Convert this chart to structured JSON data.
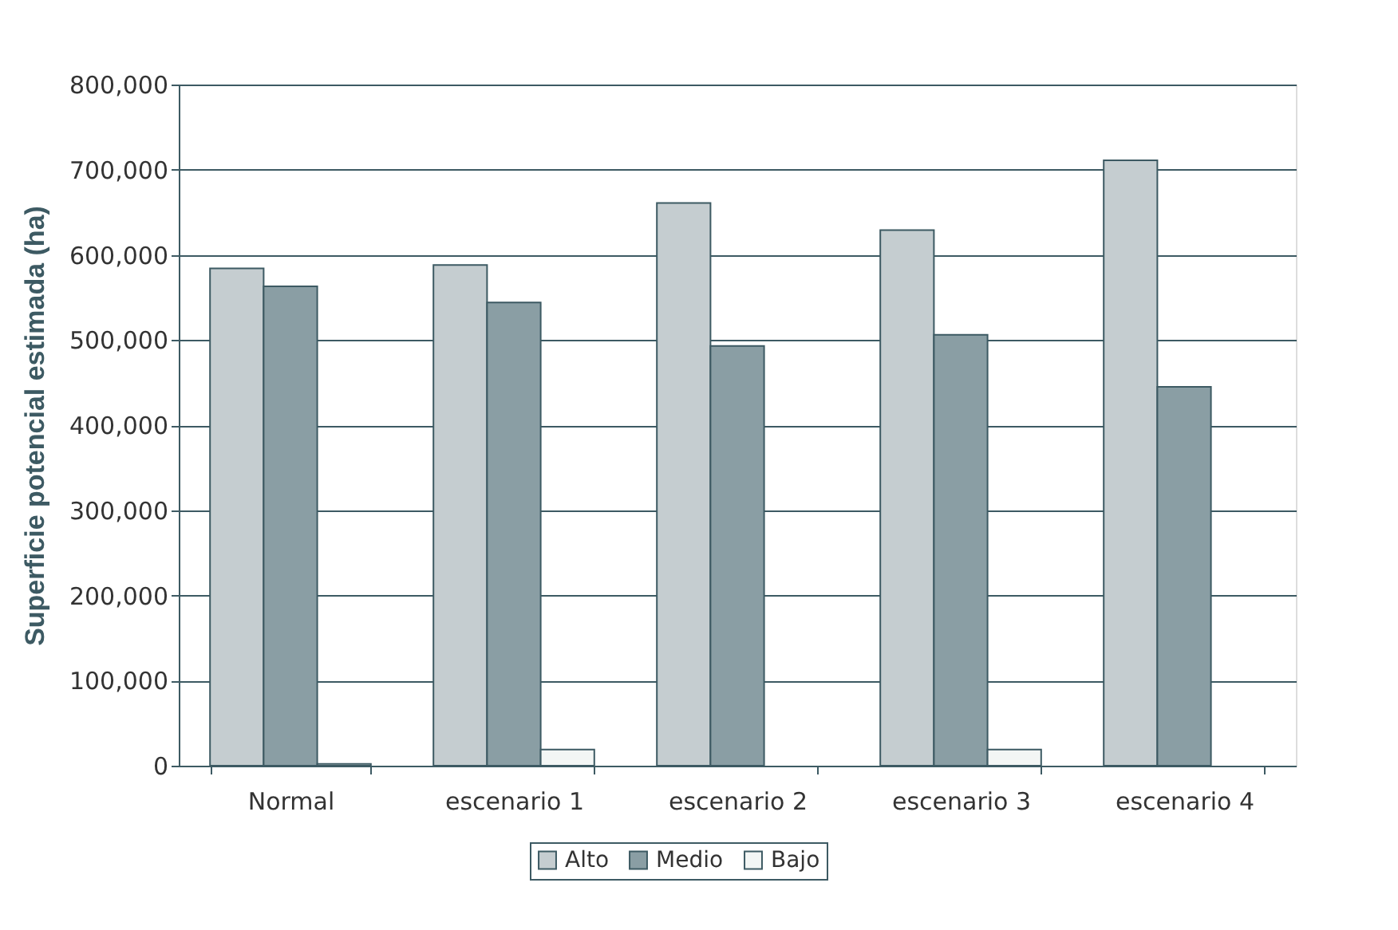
{
  "chart_data": {
    "type": "bar",
    "ylabel": "Superficie potencial estimada (ha)",
    "categories": [
      "Normal",
      "escenario 1",
      "escenario 2",
      "escenario 3",
      "escenario 4"
    ],
    "series": [
      {
        "name": "Alto",
        "color": "#c5cdd0",
        "values": [
          584000,
          588000,
          661000,
          629000,
          711000
        ]
      },
      {
        "name": "Medio",
        "color": "#8a9ea4",
        "values": [
          563000,
          544000,
          493000,
          506000,
          445000
        ]
      },
      {
        "name": "Bajo",
        "color": "#f3f6f5",
        "values": [
          2000,
          19000,
          0,
          19000,
          0
        ]
      }
    ],
    "ylim": [
      0,
      800000
    ],
    "yticks": [
      0,
      {
        "value": 100000,
        "label": "100,000"
      },
      {
        "value": 200000,
        "label": "200,000"
      },
      {
        "value": 300000,
        "label": "300,000"
      },
      {
        "value": 400000,
        "label": "400,000"
      },
      {
        "value": 500000,
        "label": "500,000"
      },
      {
        "value": 600000,
        "label": "600,000"
      },
      {
        "value": 700000,
        "label": "700,000"
      },
      {
        "value": 800000,
        "label": "800,000"
      }
    ],
    "grid": "y",
    "legend": "bottom"
  }
}
